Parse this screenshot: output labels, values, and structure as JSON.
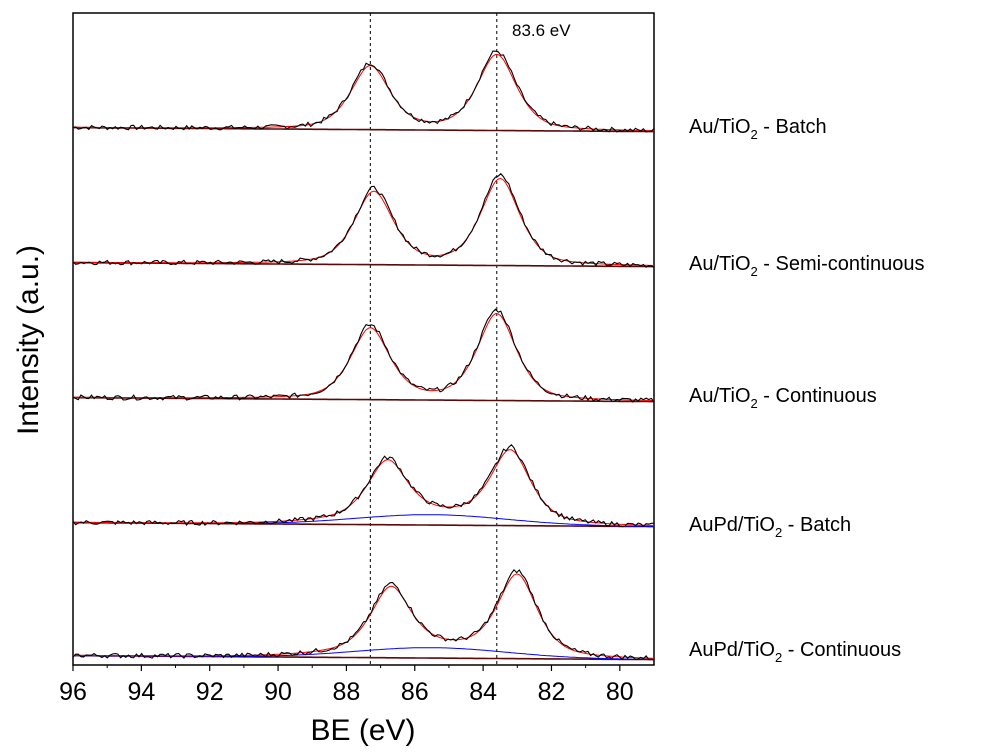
{
  "chart_data": {
    "type": "line",
    "xlabel": "BE (eV)",
    "ylabel": "Intensity (a.u.)",
    "xlim": [
      96,
      79
    ],
    "x_reversed": true,
    "xticks": [
      "96",
      "94",
      "92",
      "90",
      "88",
      "86",
      "84",
      "82",
      "80"
    ],
    "annotation": "83.6 eV",
    "reference_lines_ev": [
      87.3,
      83.6
    ],
    "colors": {
      "raw": "#000000",
      "fit": "#ff0000",
      "background": "#5a0a0a",
      "pd_component": "#0000ff"
    },
    "series": [
      {
        "name": "Au/TiO2 - Batch",
        "name_main": "Au/TiO",
        "name_sub": "2",
        "name_rest": " - Batch",
        "peaks": [
          {
            "center": 87.3,
            "height": 82
          },
          {
            "center": 83.6,
            "height": 98
          }
        ],
        "shoulder": null
      },
      {
        "name": "Au/TiO2 - Semi-continuous",
        "name_main": "Au/TiO",
        "name_sub": "2",
        "name_rest": " - Semi-continuous",
        "peaks": [
          {
            "center": 87.2,
            "height": 94
          },
          {
            "center": 83.5,
            "height": 112
          }
        ],
        "shoulder": null
      },
      {
        "name": "Au/TiO2 - Continuous",
        "name_main": "Au/TiO",
        "name_sub": "2",
        "name_rest": " - Continuous",
        "peaks": [
          {
            "center": 87.3,
            "height": 92
          },
          {
            "center": 83.6,
            "height": 112
          }
        ],
        "shoulder": null
      },
      {
        "name": "AuPd/TiO2 - Batch",
        "name_main": "AuPd/TiO",
        "name_sub": "2",
        "name_rest": " - Batch",
        "peaks": [
          {
            "center": 86.8,
            "height": 72
          },
          {
            "center": 83.2,
            "height": 90
          }
        ],
        "shoulder": {
          "center": 85.5,
          "height": 13
        }
      },
      {
        "name": "AuPd/TiO2 - Continuous",
        "name_main": "AuPd/TiO",
        "name_sub": "2",
        "name_rest": " - Continuous",
        "peaks": [
          {
            "center": 86.7,
            "height": 80
          },
          {
            "center": 83.0,
            "height": 102
          }
        ],
        "shoulder": {
          "center": 85.5,
          "height": 13
        }
      }
    ]
  }
}
